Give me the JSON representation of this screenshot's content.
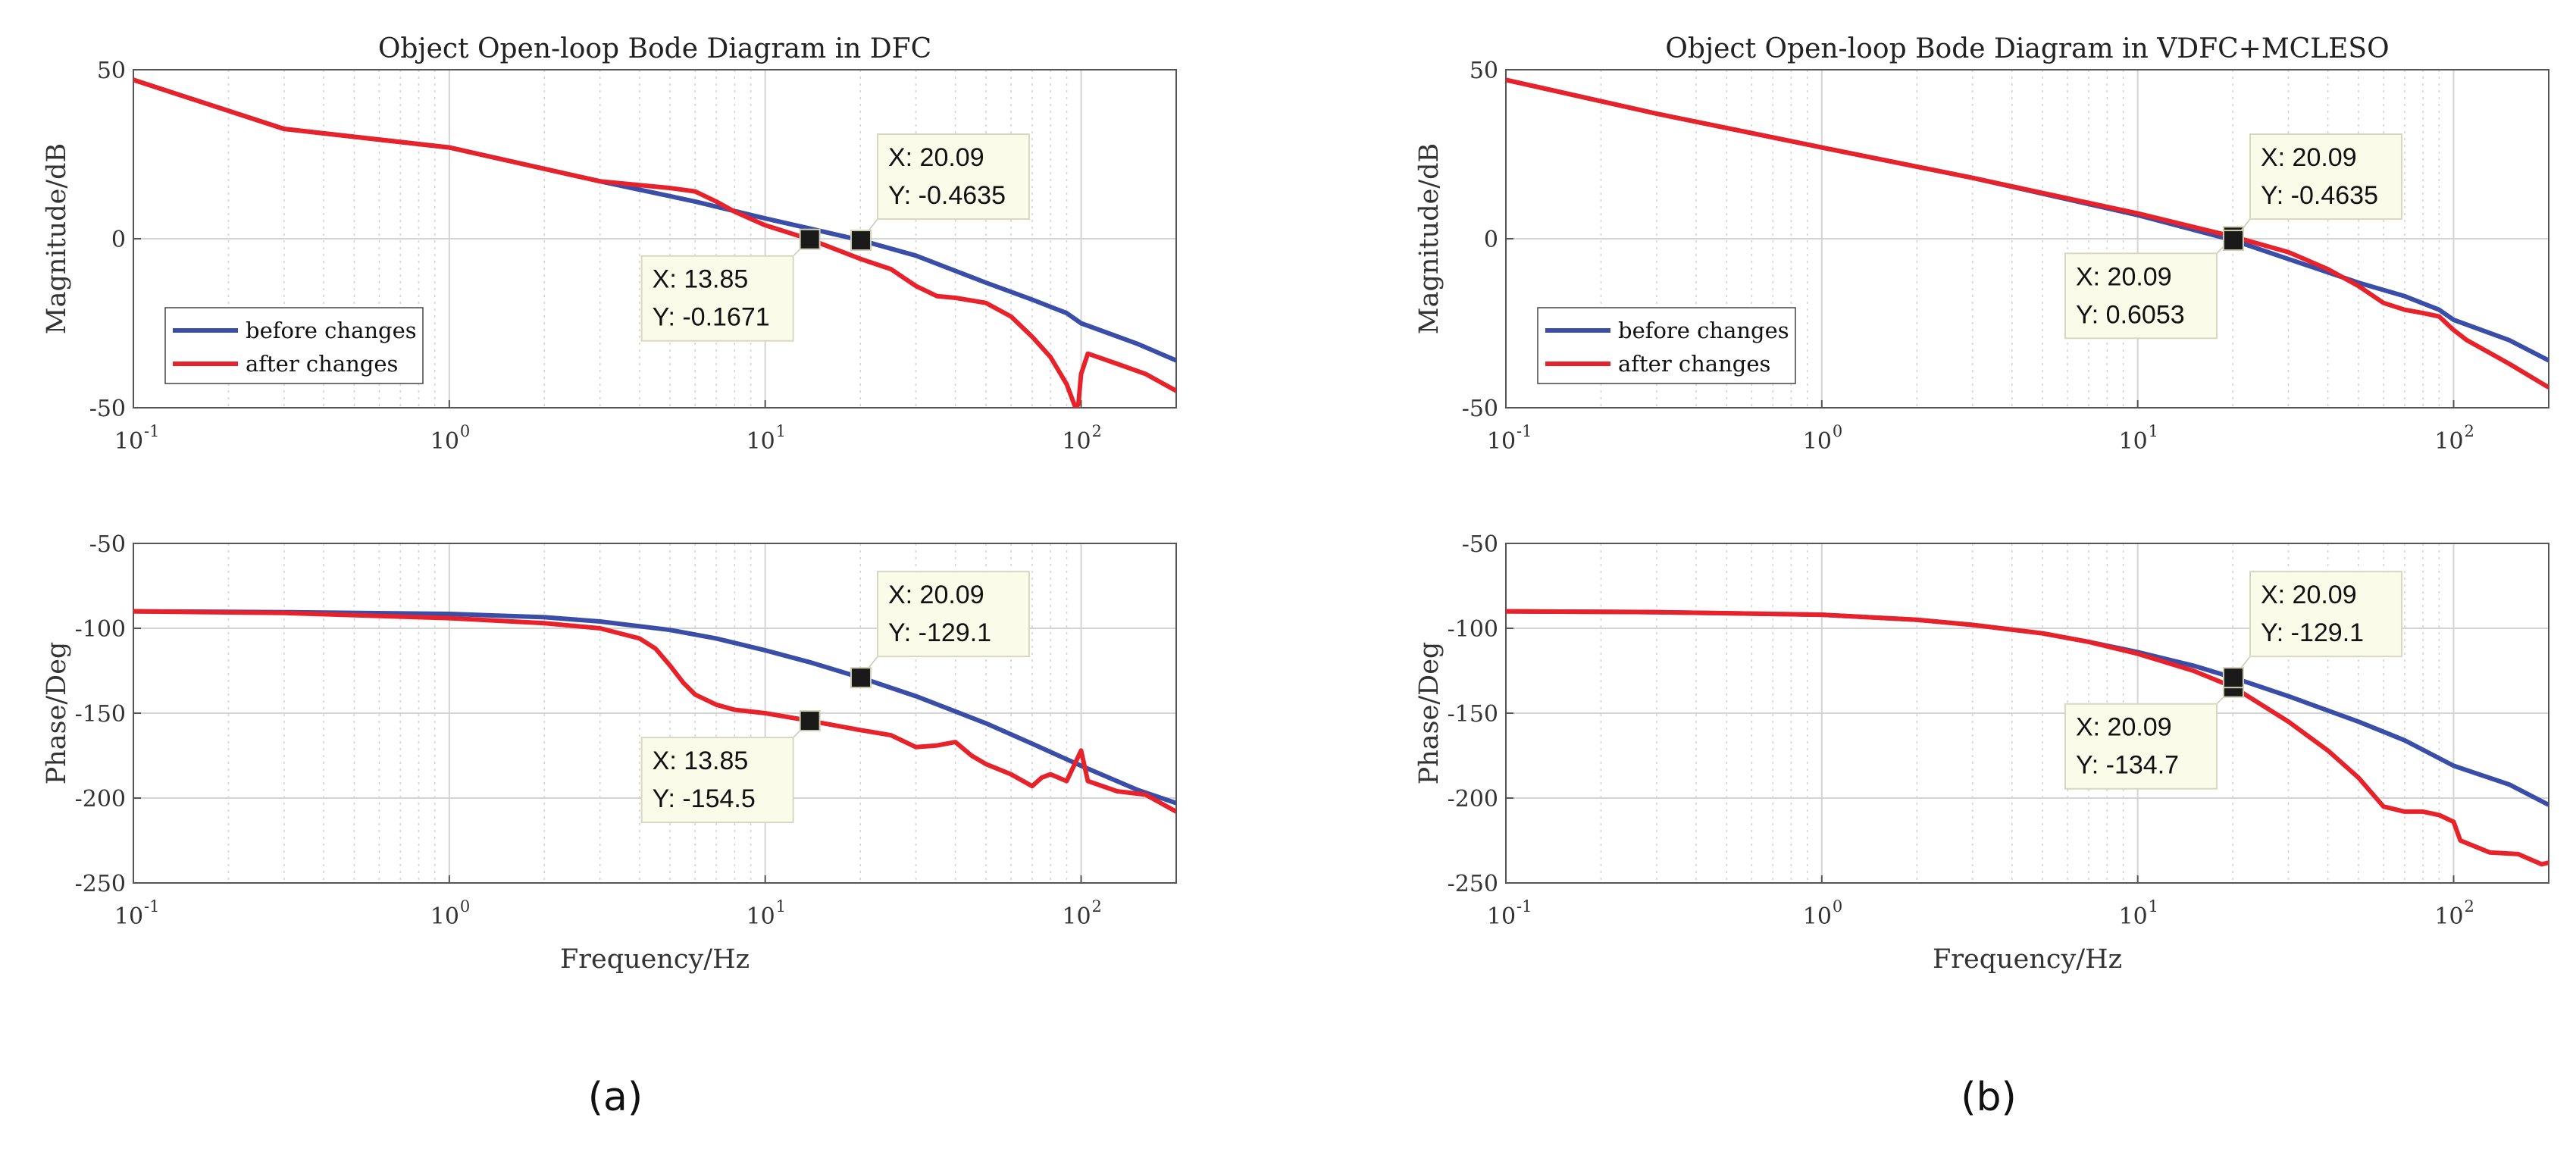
{
  "colors": {
    "before": "#3a4ea8",
    "after": "#e8222a",
    "grid": "#d4d4d4",
    "axis": "#555555",
    "tip_bg": "#fbfbea",
    "marker": "#1a1a1a"
  },
  "captions": [
    "(a)",
    "(b)"
  ],
  "chart_data": [
    {
      "type": "line",
      "panel": "a-magnitude",
      "title": "Object Open-loop Bode Diagram in DFC",
      "xlabel": "",
      "ylabel": "Magnitude/dB",
      "xscale": "log",
      "xlim": [
        0.1,
        200
      ],
      "ylim": [
        -50,
        50
      ],
      "xticks": [
        {
          "base": "10",
          "exp": "-1"
        },
        {
          "base": "10",
          "exp": "0"
        },
        {
          "base": "10",
          "exp": "1"
        },
        {
          "base": "10",
          "exp": "2"
        }
      ],
      "yticks": [
        "50",
        "0",
        "-50"
      ],
      "ytick_values": [
        50,
        0,
        -50
      ],
      "legend": {
        "position": "bottom-left",
        "entries": [
          "before changes",
          "after changes"
        ]
      },
      "series": [
        {
          "name": "before changes",
          "x": [
            0.1,
            0.3,
            1,
            3,
            6,
            10,
            13.85,
            20.09,
            30,
            50,
            70,
            90,
            100,
            150,
            200
          ],
          "y": [
            47,
            32.5,
            27,
            17,
            11,
            6,
            3,
            -0.46,
            -5,
            -13,
            -18,
            -22,
            -25,
            -31,
            -36
          ]
        },
        {
          "name": "after changes",
          "x": [
            0.1,
            0.3,
            1,
            3,
            5,
            6,
            7,
            8,
            10,
            13.85,
            20.09,
            25,
            30,
            35,
            40,
            50,
            60,
            70,
            80,
            90,
            96,
            98,
            100,
            105,
            130,
            160,
            200
          ],
          "y": [
            47,
            32.5,
            27,
            17,
            15,
            14,
            11,
            8,
            4,
            -0.17,
            -6,
            -9,
            -14,
            -17,
            -17.5,
            -19,
            -23,
            -29,
            -35,
            -43,
            -50,
            -49,
            -40,
            -34,
            -37,
            -40,
            -45
          ]
        }
      ],
      "datatips": [
        {
          "x": 13.85,
          "y": -0.1671,
          "label_x": "X: 13.85",
          "label_y": "Y: -0.1671",
          "box": "below-left"
        },
        {
          "x": 20.09,
          "y": -0.4635,
          "label_x": "X: 20.09",
          "label_y": "Y: -0.4635",
          "box": "above-right"
        }
      ]
    },
    {
      "type": "line",
      "panel": "a-phase",
      "title": "",
      "xlabel": "Frequency/Hz",
      "ylabel": "Phase/Deg",
      "xscale": "log",
      "xlim": [
        0.1,
        200
      ],
      "ylim": [
        -250,
        -50
      ],
      "xticks": [
        {
          "base": "10",
          "exp": "-1"
        },
        {
          "base": "10",
          "exp": "0"
        },
        {
          "base": "10",
          "exp": "1"
        },
        {
          "base": "10",
          "exp": "2"
        }
      ],
      "yticks": [
        "-50",
        "-100",
        "-150",
        "-200",
        "-250"
      ],
      "ytick_values": [
        -50,
        -100,
        -150,
        -200,
        -250
      ],
      "series": [
        {
          "name": "before changes",
          "x": [
            0.1,
            0.3,
            1,
            2,
            3,
            5,
            7,
            10,
            13.85,
            20.09,
            30,
            50,
            70,
            100,
            150,
            200
          ],
          "y": [
            -90,
            -90.5,
            -91.5,
            -93.5,
            -96,
            -101,
            -106,
            -113,
            -120,
            -129.1,
            -140,
            -156,
            -168,
            -181,
            -195,
            -203
          ]
        },
        {
          "name": "after changes",
          "x": [
            0.1,
            0.3,
            1,
            2,
            3,
            4,
            4.5,
            5,
            5.5,
            6,
            7,
            8,
            10,
            13.85,
            20.09,
            25,
            30,
            35,
            40,
            45,
            50,
            60,
            70,
            75,
            80,
            90,
            100,
            105,
            130,
            160,
            200
          ],
          "y": [
            -90,
            -91,
            -94,
            -97,
            -100,
            -106,
            -112,
            -122,
            -132,
            -139,
            -145,
            -148,
            -150,
            -154.5,
            -160,
            -163,
            -170,
            -169,
            -167,
            -175,
            -180,
            -186,
            -193,
            -188,
            -186,
            -190,
            -172,
            -190,
            -196,
            -198,
            -208
          ]
        }
      ],
      "datatips": [
        {
          "x": 13.85,
          "y": -154.5,
          "label_x": "X: 13.85",
          "label_y": "Y: -154.5",
          "box": "below-left"
        },
        {
          "x": 20.09,
          "y": -129.1,
          "label_x": "X: 20.09",
          "label_y": "Y: -129.1",
          "box": "above-right"
        }
      ]
    },
    {
      "type": "line",
      "panel": "b-magnitude",
      "title": "Object Open-loop Bode Diagram in VDFC+MCLESO",
      "xlabel": "",
      "ylabel": "Magnitude/dB",
      "xscale": "log",
      "xlim": [
        0.1,
        200
      ],
      "ylim": [
        -50,
        50
      ],
      "xticks": [
        {
          "base": "10",
          "exp": "-1"
        },
        {
          "base": "10",
          "exp": "0"
        },
        {
          "base": "10",
          "exp": "1"
        },
        {
          "base": "10",
          "exp": "2"
        }
      ],
      "yticks": [
        "50",
        "0",
        "-50"
      ],
      "ytick_values": [
        50,
        0,
        -50
      ],
      "legend": {
        "position": "bottom-left",
        "entries": [
          "before changes",
          "after changes"
        ]
      },
      "series": [
        {
          "name": "before changes",
          "x": [
            0.1,
            0.3,
            1,
            3,
            10,
            20.09,
            30,
            50,
            70,
            90,
            100,
            150,
            200
          ],
          "y": [
            47,
            37,
            27,
            18,
            7,
            -0.46,
            -6,
            -13,
            -17,
            -21,
            -24,
            -30,
            -36
          ]
        },
        {
          "name": "after changes",
          "x": [
            0.1,
            0.3,
            1,
            3,
            10,
            20.09,
            30,
            40,
            50,
            60,
            70,
            80,
            90,
            100,
            110,
            150,
            200
          ],
          "y": [
            47,
            37,
            27,
            18,
            7.5,
            0.6,
            -4,
            -9,
            -14,
            -19,
            -21,
            -22,
            -23,
            -27,
            -30,
            -37,
            -44
          ]
        }
      ],
      "datatips": [
        {
          "x": 20.09,
          "y": 0.6053,
          "label_x": "X: 20.09",
          "label_y": "Y: 0.6053",
          "box": "below-left"
        },
        {
          "x": 20.09,
          "y": -0.4635,
          "label_x": "X: 20.09",
          "label_y": "Y: -0.4635",
          "box": "above-right"
        }
      ]
    },
    {
      "type": "line",
      "panel": "b-phase",
      "title": "",
      "xlabel": "Frequency/Hz",
      "ylabel": "Phase/Deg",
      "xscale": "log",
      "xlim": [
        0.1,
        200
      ],
      "ylim": [
        -250,
        -50
      ],
      "xticks": [
        {
          "base": "10",
          "exp": "-1"
        },
        {
          "base": "10",
          "exp": "0"
        },
        {
          "base": "10",
          "exp": "1"
        },
        {
          "base": "10",
          "exp": "2"
        }
      ],
      "yticks": [
        "-50",
        "-100",
        "-150",
        "-200",
        "-250"
      ],
      "ytick_values": [
        -50,
        -100,
        -150,
        -200,
        -250
      ],
      "series": [
        {
          "name": "before changes",
          "x": [
            0.1,
            0.3,
            1,
            2,
            3,
            5,
            7,
            10,
            15,
            20.09,
            30,
            50,
            70,
            100,
            150,
            200
          ],
          "y": [
            -90,
            -90.5,
            -92,
            -95,
            -98,
            -103,
            -108,
            -114,
            -122,
            -129.1,
            -140,
            -155,
            -166,
            -181,
            -192,
            -204
          ]
        },
        {
          "name": "after changes",
          "x": [
            0.1,
            0.3,
            1,
            2,
            3,
            5,
            7,
            10,
            15,
            20.09,
            30,
            40,
            50,
            60,
            70,
            80,
            90,
            100,
            105,
            130,
            160,
            190,
            200
          ],
          "y": [
            -90,
            -90.5,
            -92,
            -95,
            -98,
            -103,
            -108,
            -115,
            -125,
            -134.7,
            -155,
            -172,
            -188,
            -205,
            -208,
            -208,
            -210,
            -214,
            -225,
            -232,
            -233,
            -239,
            -238
          ]
        }
      ],
      "datatips": [
        {
          "x": 20.09,
          "y": -134.7,
          "label_x": "X: 20.09",
          "label_y": "Y: -134.7",
          "box": "below-left"
        },
        {
          "x": 20.09,
          "y": -129.1,
          "label_x": "X: 20.09",
          "label_y": "Y: -129.1",
          "box": "above-right"
        }
      ]
    }
  ]
}
